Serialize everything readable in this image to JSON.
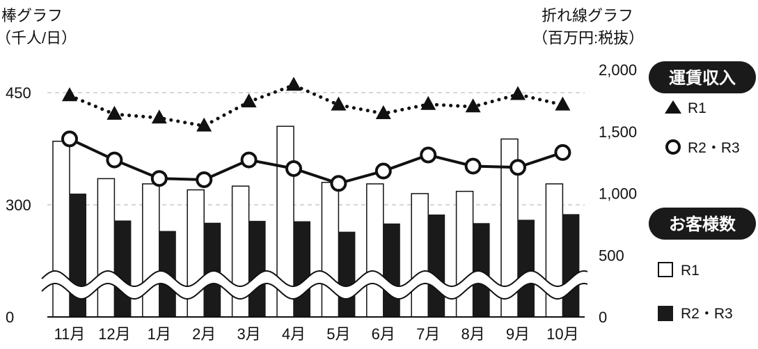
{
  "chart_data": {
    "type": "bar+line",
    "categories": [
      "11月",
      "12月",
      "1月",
      "2月",
      "3月",
      "4月",
      "5月",
      "6月",
      "7月",
      "8月",
      "9月",
      "10月"
    ],
    "bar_axis": {
      "label_line1": "棒グラフ",
      "label_line2": "（千人/日）",
      "ticks": [
        0,
        300,
        450
      ],
      "tick_labels": [
        "0",
        "300",
        "450"
      ],
      "axis_break": true
    },
    "line_axis": {
      "label_line1": "折れ線グラフ",
      "label_line2": "（百万円:税抜）",
      "ticks": [
        0,
        500,
        1000,
        1500,
        2000
      ],
      "tick_labels": [
        "0",
        "500",
        "1,000",
        "1,500",
        "2,000"
      ]
    },
    "bar_series": [
      {
        "name": "R1",
        "fill": "#ffffff",
        "values": [
          385,
          335,
          328,
          320,
          325,
          405,
          330,
          328,
          315,
          318,
          388,
          328
        ]
      },
      {
        "name": "R2・R3",
        "fill": "#1a1a1a",
        "values": [
          315,
          258,
          230,
          252,
          257,
          256,
          228,
          250,
          274,
          251,
          260,
          275
        ]
      }
    ],
    "line_series": [
      {
        "name": "R1",
        "marker": "triangle",
        "style": "dotted",
        "values": [
          1790,
          1640,
          1610,
          1545,
          1740,
          1875,
          1715,
          1645,
          1720,
          1700,
          1800,
          1715
        ]
      },
      {
        "name": "R2・R3",
        "marker": "circle",
        "style": "solid",
        "values": [
          1440,
          1270,
          1120,
          1110,
          1270,
          1200,
          1080,
          1180,
          1310,
          1220,
          1210,
          1330
        ]
      }
    ],
    "legend": {
      "revenue_title": "運賃収入",
      "passenger_title": "お客様数",
      "placement": "right"
    },
    "colors": {
      "ink": "#111111",
      "pill": "#1a1a1a",
      "grid": "#c8c8c8"
    }
  }
}
